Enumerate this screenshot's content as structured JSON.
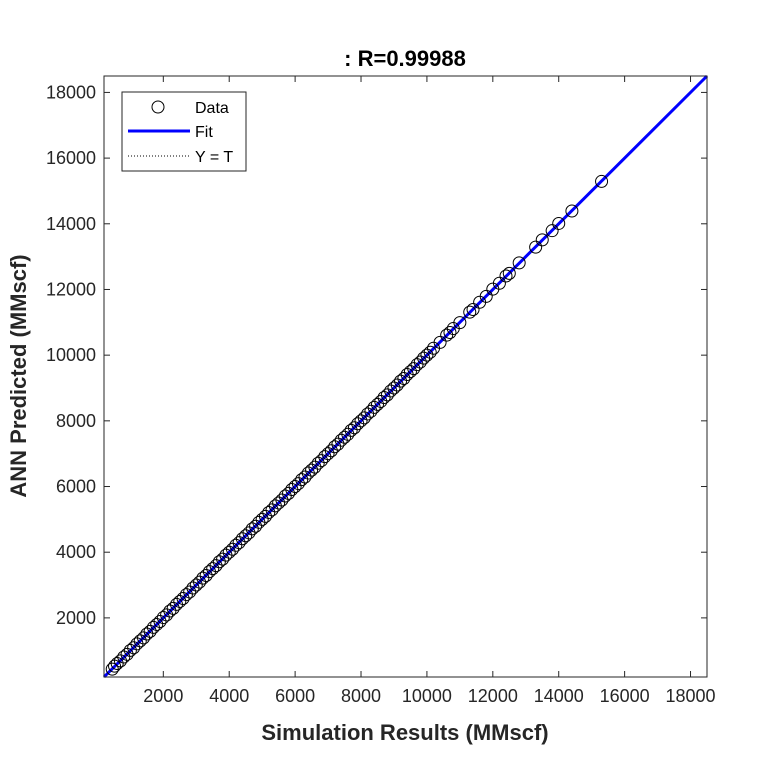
{
  "chart_data": {
    "type": "scatter",
    "title": ": R=0.99988",
    "xlabel": "Simulation Results (MMscf)",
    "ylabel": "ANN Predicted (MMscf)",
    "xlim": [
      200,
      18500
    ],
    "ylim": [
      200,
      18500
    ],
    "xticks": [
      2000,
      4000,
      6000,
      8000,
      10000,
      12000,
      14000,
      16000,
      18000
    ],
    "yticks": [
      2000,
      4000,
      6000,
      8000,
      10000,
      12000,
      14000,
      16000,
      18000
    ],
    "grid": false,
    "legend_position": "top-left",
    "legend": [
      "Data",
      "Fit",
      "Y = T"
    ],
    "fit": {
      "slope": 1.0,
      "intercept": 0
    },
    "colors": {
      "data": "#000000",
      "fit": "#0000ff",
      "identity": "#000000",
      "axis": "#262626"
    },
    "series": [
      {
        "name": "Data",
        "marker": "circle-open",
        "x": [
          450,
          520,
          600,
          700,
          800,
          900,
          1000,
          1100,
          1200,
          1300,
          1400,
          1500,
          1600,
          1700,
          1800,
          1900,
          2000,
          2100,
          2200,
          2300,
          2400,
          2500,
          2600,
          2700,
          2800,
          2900,
          3000,
          3100,
          3200,
          3300,
          3400,
          3500,
          3600,
          3700,
          3800,
          3900,
          4000,
          4100,
          4200,
          4300,
          4400,
          4500,
          4600,
          4700,
          4800,
          4900,
          5000,
          5100,
          5200,
          5300,
          5400,
          5500,
          5600,
          5700,
          5800,
          5900,
          6000,
          6100,
          6200,
          6300,
          6400,
          6500,
          6600,
          6700,
          6800,
          6900,
          7000,
          7100,
          7200,
          7300,
          7400,
          7500,
          7600,
          7700,
          7800,
          7900,
          8000,
          8100,
          8200,
          8300,
          8400,
          8500,
          8600,
          8700,
          8800,
          8900,
          9000,
          9100,
          9200,
          9300,
          9400,
          9500,
          9600,
          9700,
          9800,
          9900,
          10000,
          10100,
          10200,
          10400,
          10600,
          10700,
          10800,
          11000,
          11300,
          11400,
          11600,
          11800,
          12000,
          12200,
          12400,
          12500,
          12800,
          13300,
          13500,
          13800,
          14000,
          14400,
          15300
        ],
        "y": [
          440,
          530,
          610,
          690,
          810,
          890,
          1010,
          1090,
          1210,
          1300,
          1390,
          1510,
          1590,
          1710,
          1800,
          1890,
          2010,
          2090,
          2210,
          2290,
          2410,
          2500,
          2590,
          2710,
          2790,
          2910,
          3000,
          3090,
          3210,
          3290,
          3410,
          3500,
          3590,
          3710,
          3790,
          3910,
          4000,
          4090,
          4210,
          4290,
          4410,
          4500,
          4590,
          4710,
          4790,
          4910,
          5000,
          5090,
          5210,
          5290,
          5410,
          5500,
          5590,
          5710,
          5790,
          5910,
          6000,
          6090,
          6210,
          6290,
          6410,
          6500,
          6590,
          6710,
          6790,
          6910,
          7000,
          7090,
          7210,
          7290,
          7410,
          7500,
          7590,
          7710,
          7790,
          7910,
          8000,
          8090,
          8210,
          8290,
          8410,
          8500,
          8590,
          8710,
          8790,
          8910,
          9000,
          9090,
          9210,
          9290,
          9410,
          9500,
          9590,
          9710,
          9790,
          9910,
          10000,
          10090,
          10210,
          10390,
          10610,
          10690,
          10810,
          10990,
          11310,
          11390,
          11610,
          11790,
          12010,
          12190,
          12410,
          12490,
          12810,
          13290,
          13510,
          13790,
          14010,
          14390,
          15290
        ]
      }
    ]
  }
}
